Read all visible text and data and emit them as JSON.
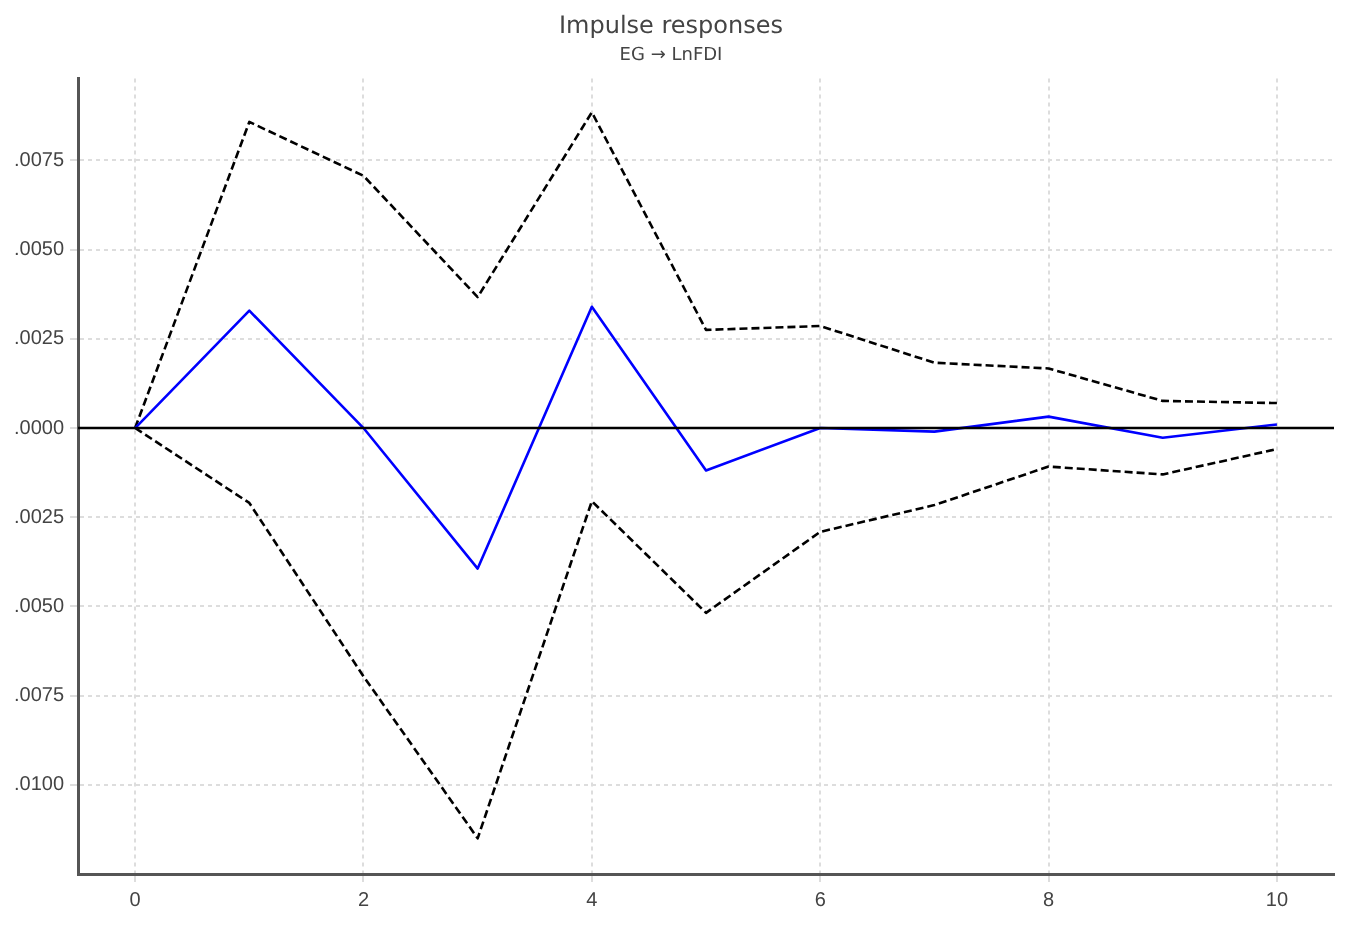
{
  "chart_data": {
    "type": "line",
    "title": "Impulse responses",
    "subtitle": "EG → LnFDI",
    "x": [
      0,
      1,
      2,
      3,
      4,
      5,
      6,
      7,
      8,
      9,
      10
    ],
    "series": [
      {
        "color": "#0000ff",
        "line_style": "solid",
        "values": [
          0,
          0.00329,
          0,
          -0.00394,
          0.0034,
          -0.00119,
          0,
          -0.0001,
          0.00032,
          -0.00027,
          0.0001
        ]
      },
      {
        "color": "#000000",
        "line_style": "dashed",
        "values": [
          0,
          0.00858,
          0.00707,
          0.00367,
          0.00885,
          0.00275,
          0.00286,
          0.00183,
          0.00167,
          0.00076,
          0.0007
        ]
      },
      {
        "color": "#000000",
        "line_style": "dashed",
        "values": [
          0,
          -0.0021,
          -0.00696,
          -0.0115,
          -0.00205,
          -0.00518,
          -0.00291,
          -0.00216,
          -0.00108,
          -0.0013,
          -0.00059
        ]
      }
    ],
    "xlim": [
      -0.5,
      10.5
    ],
    "xticks": [
      0,
      2,
      4,
      6,
      8,
      10
    ],
    "ylim": [
      -0.0125,
      0.0098
    ],
    "yticks": [
      {
        "value": -0.01,
        "label": ".0100"
      },
      {
        "value": -0.0075,
        "label": ".0075"
      },
      {
        "value": -0.005,
        "label": ".0050"
      },
      {
        "value": -0.0025,
        "label": ".0025"
      },
      {
        "value": 0,
        "label": ".0000"
      },
      {
        "value": 0.0025,
        "label": ".0025"
      },
      {
        "value": 0.005,
        "label": ".0050"
      },
      {
        "value": 0.0075,
        "label": ".0075"
      }
    ],
    "ref_lines": [
      {
        "axis": "y",
        "value": 0,
        "color": "#000000",
        "line_style": "solid"
      }
    ],
    "grid": true,
    "legend": false,
    "marker": "none"
  }
}
